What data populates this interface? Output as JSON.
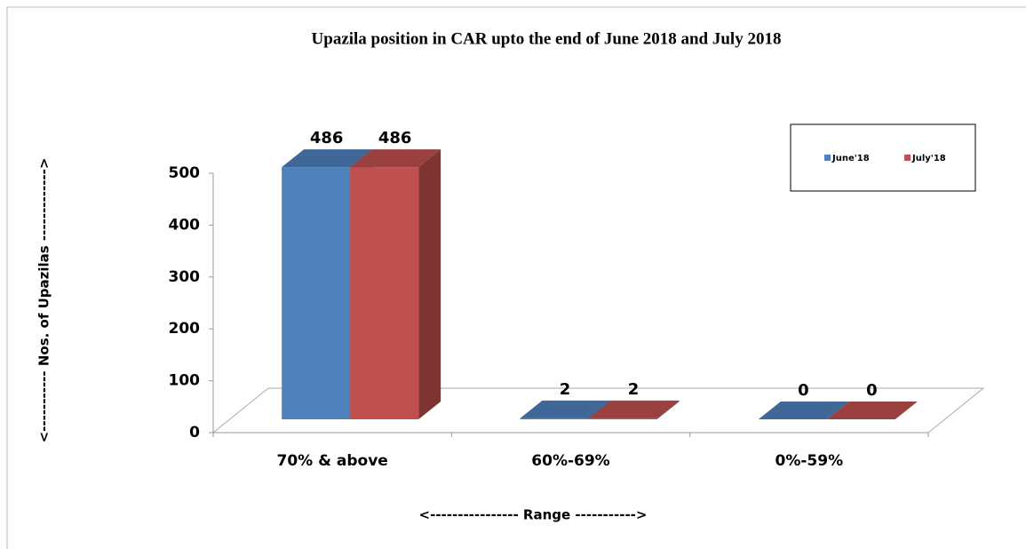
{
  "chart_data": {
    "type": "bar3d",
    "title": "Upazila position in CAR upto the end  of June 2018 and July 2018",
    "x_label": "<---------------- Range ----------->",
    "y_label": "<----------- Nos. of Upazilas ------------->",
    "categories": [
      "70% & above",
      "60%-69%",
      "0%-59%"
    ],
    "series": [
      {
        "name": "June'18",
        "color": "#4f81bd",
        "values": [
          486,
          2,
          0
        ]
      },
      {
        "name": "July'18",
        "color": "#c0504d",
        "values": [
          486,
          2,
          0
        ]
      }
    ],
    "ylim": [
      0,
      500
    ],
    "yticks": [
      0,
      100,
      200,
      300,
      400,
      500
    ],
    "legend": "upper right"
  }
}
